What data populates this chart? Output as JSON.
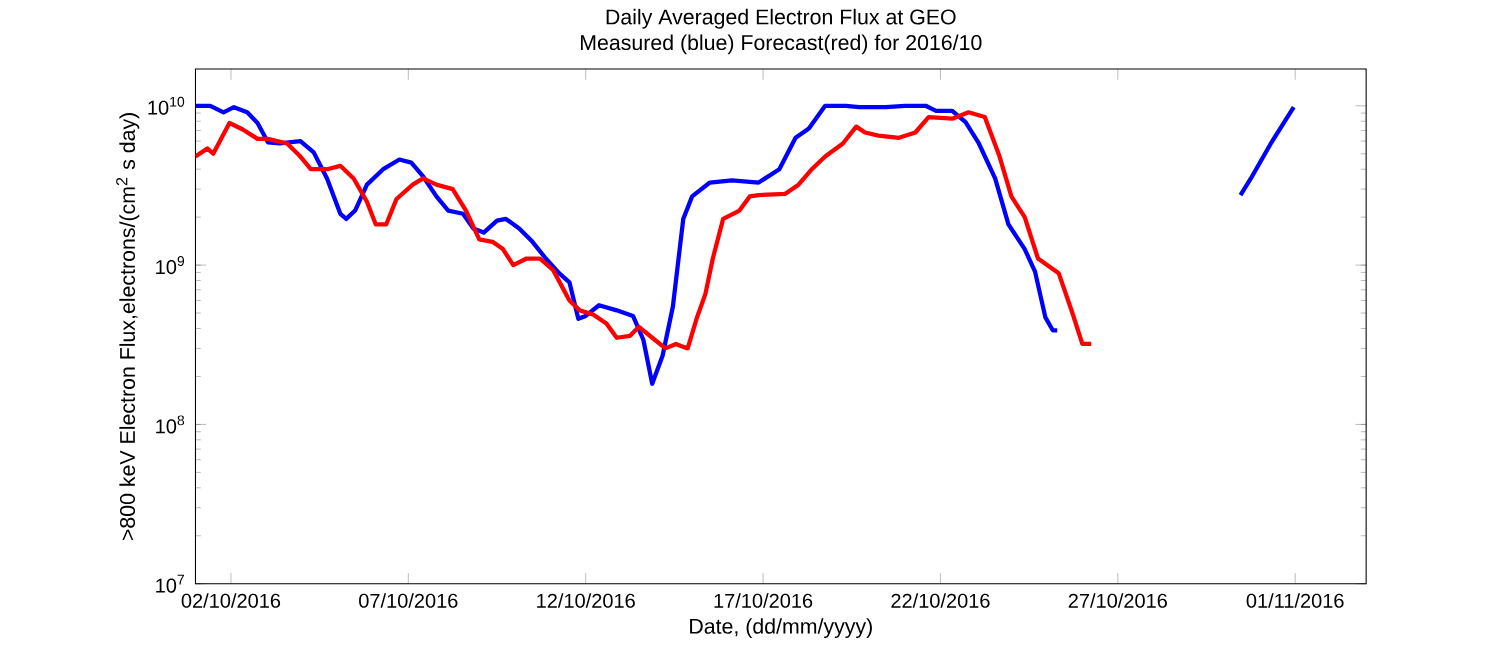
{
  "chart_data": {
    "type": "line",
    "title": "Daily Averaged Electron Flux at GEO",
    "subtitle": "Measured (blue) Forecast(red) for 2016/10",
    "xlabel": "Date, (dd/mm/yyyy)",
    "ylabel": ">800 keV Electron Flux,electrons/(cm$^{2}$ s day)",
    "log": "y",
    "ylim": [
      10000000.0,
      17000000000.0
    ],
    "yticks": [
      {
        "value": 10000000.0,
        "label": "10$^{7}$"
      },
      {
        "value": 100000000.0,
        "label": "10$^{8}$"
      },
      {
        "value": 1000000000.0,
        "label": "10$^{9}$"
      },
      {
        "value": 10000000000.0,
        "label": "10$^{10}$"
      }
    ],
    "xlim": [
      "2016-10-01",
      "2016-11-03"
    ],
    "xticks": [
      {
        "value": "2016-10-02",
        "label": "02/10/2016"
      },
      {
        "value": "2016-10-07",
        "label": "07/10/2016"
      },
      {
        "value": "2016-10-12",
        "label": "12/10/2016"
      },
      {
        "value": "2016-10-17",
        "label": "17/10/2016"
      },
      {
        "value": "2016-10-22",
        "label": "22/10/2016"
      },
      {
        "value": "2016-10-27",
        "label": "27/10/2016"
      },
      {
        "value": "2016-11-01",
        "label": "01/11/2016"
      }
    ],
    "series": [
      {
        "color": "#0000ff",
        "x": [
          "2016-10-01T00:00",
          "2016-10-01T10:00",
          "2016-10-01T19:00",
          "2016-10-02T02:00",
          "2016-10-02T11:00",
          "2016-10-02T18:00",
          "2016-10-03T01:00",
          "2016-10-03T09:00",
          "2016-10-03T23:00",
          "2016-10-04T08:00",
          "2016-10-04T17:00",
          "2016-10-05T02:00",
          "2016-10-05T06:00",
          "2016-10-05T12:00",
          "2016-10-05T20:00",
          "2016-10-06T07:00",
          "2016-10-06T18:00",
          "2016-10-07T02:00",
          "2016-10-07T10:00",
          "2016-10-07T19:00",
          "2016-10-08T03:00",
          "2016-10-08T13:00",
          "2016-10-08T20:00",
          "2016-10-09T03:00",
          "2016-10-09T12:00",
          "2016-10-09T18:00",
          "2016-10-10T03:00",
          "2016-10-10T12:00",
          "2016-10-10T21:00",
          "2016-10-11T06:00",
          "2016-10-11T13:00",
          "2016-10-11T19:00",
          "2016-10-12T00:00",
          "2016-10-12T09:00",
          "2016-10-12T21:00",
          "2016-10-13T08:00",
          "2016-10-13T15:00",
          "2016-10-13T21:00",
          "2016-10-14T04:00",
          "2016-10-14T11:00",
          "2016-10-14T18:00",
          "2016-10-15T00:00",
          "2016-10-15T12:00",
          "2016-10-16T03:00",
          "2016-10-16T21:00",
          "2016-10-17T11:00",
          "2016-10-17T22:00",
          "2016-10-18T07:00",
          "2016-10-18T18:00",
          "2016-10-19T08:00",
          "2016-10-19T17:00",
          "2016-10-20T11:00",
          "2016-10-21T00:00",
          "2016-10-21T14:00",
          "2016-10-21T21:00",
          "2016-10-22T08:00",
          "2016-10-22T17:00",
          "2016-10-23T02:00",
          "2016-10-23T13:00",
          "2016-10-23T22:00",
          "2016-10-24T09:00",
          "2016-10-24T16:00",
          "2016-10-24T23:00",
          "2016-10-25T04:00",
          "2016-10-25T07:00",
          "2016-10-27T00:00",
          "2016-10-30T11:00",
          "2016-10-30T18:00",
          "2016-10-31T08:00",
          "2016-10-31T23:00"
        ],
        "values": [
          10000000000.0,
          10000000000.0,
          9100000000.0,
          9800000000.0,
          9100000000.0,
          7800000000.0,
          5900000000.0,
          5800000000.0,
          6000000000.0,
          5100000000.0,
          3500000000.0,
          2100000000.0,
          1950000000.0,
          2200000000.0,
          3200000000.0,
          4000000000.0,
          4600000000.0,
          4400000000.0,
          3600000000.0,
          2700000000.0,
          2200000000.0,
          2100000000.0,
          1700000000.0,
          1600000000.0,
          1900000000.0,
          1950000000.0,
          1700000000.0,
          1400000000.0,
          1100000000.0,
          890000000.0,
          780000000.0,
          460000000.0,
          480000000.0,
          560000000.0,
          520000000.0,
          480000000.0,
          340000000.0,
          180000000.0,
          270000000.0,
          550000000.0,
          1950000000.0,
          2700000000.0,
          3300000000.0,
          3400000000.0,
          3300000000.0,
          4000000000.0,
          6300000000.0,
          7200000000.0,
          10000000000.0,
          10000000000.0,
          9800000000.0,
          9800000000.0,
          10000000000.0,
          10000000000.0,
          9300000000.0,
          9300000000.0,
          7900000000.0,
          5800000000.0,
          3500000000.0,
          1800000000.0,
          1260000000.0,
          910000000.0,
          470000000.0,
          390000000.0,
          390000000.0,
          null,
          2750000000.0,
          3500000000.0,
          5900000000.0,
          9800000000.0
        ]
      },
      {
        "color": "#ff0000",
        "x": [
          "2016-10-01T00:00",
          "2016-10-01T08:00",
          "2016-10-01T12:00",
          "2016-10-01T23:00",
          "2016-10-02T08:00",
          "2016-10-02T18:00",
          "2016-10-03T01:00",
          "2016-10-03T14:00",
          "2016-10-03T23:00",
          "2016-10-04T06:00",
          "2016-10-04T17:00",
          "2016-10-05T02:00",
          "2016-10-05T11:00",
          "2016-10-05T20:00",
          "2016-10-06T02:00",
          "2016-10-06T09:00",
          "2016-10-06T16:00",
          "2016-10-07T03:00",
          "2016-10-07T10:00",
          "2016-10-07T19:00",
          "2016-10-08T06:00",
          "2016-10-08T15:00",
          "2016-10-09T00:00",
          "2016-10-09T09:00",
          "2016-10-09T16:00",
          "2016-10-09T23:00",
          "2016-10-10T08:00",
          "2016-10-10T17:00",
          "2016-10-11T02:00",
          "2016-10-11T13:00",
          "2016-10-11T20:00",
          "2016-10-12T05:00",
          "2016-10-12T14:00",
          "2016-10-12T21:00",
          "2016-10-13T06:00",
          "2016-10-13T12:00",
          "2016-10-13T21:00",
          "2016-10-14T06:00",
          "2016-10-14T13:00",
          "2016-10-14T21:00",
          "2016-10-15T03:00",
          "2016-10-15T09:00",
          "2016-10-15T14:00",
          "2016-10-15T21:00",
          "2016-10-16T08:00",
          "2016-10-16T15:00",
          "2016-10-16T21:00",
          "2016-10-17T15:00",
          "2016-10-18T00:00",
          "2016-10-18T09:00",
          "2016-10-18T18:00",
          "2016-10-19T06:00",
          "2016-10-19T15:00",
          "2016-10-19T21:00",
          "2016-10-20T06:00",
          "2016-10-20T20:00",
          "2016-10-21T07:00",
          "2016-10-21T16:00",
          "2016-10-22T08:00",
          "2016-10-22T19:00",
          "2016-10-23T06:00",
          "2016-10-23T16:00",
          "2016-10-24T00:00",
          "2016-10-24T09:00",
          "2016-10-24T18:00",
          "2016-10-25T08:00",
          "2016-10-25T17:00",
          "2016-10-26T00:00",
          "2016-10-26T06:00"
        ],
        "values": [
          4800000000.0,
          5400000000.0,
          5000000000.0,
          7800000000.0,
          7100000000.0,
          6200000000.0,
          6200000000.0,
          5800000000.0,
          4800000000.0,
          4000000000.0,
          4000000000.0,
          4200000000.0,
          3500000000.0,
          2500000000.0,
          1800000000.0,
          1800000000.0,
          2600000000.0,
          3200000000.0,
          3500000000.0,
          3200000000.0,
          3000000000.0,
          2200000000.0,
          1450000000.0,
          1400000000.0,
          1260000000.0,
          1000000000.0,
          1100000000.0,
          1100000000.0,
          930000000.0,
          600000000.0,
          520000000.0,
          490000000.0,
          430000000.0,
          350000000.0,
          360000000.0,
          410000000.0,
          350000000.0,
          300000000.0,
          320000000.0,
          300000000.0,
          460000000.0,
          660000000.0,
          1100000000.0,
          1950000000.0,
          2200000000.0,
          2700000000.0,
          2750000000.0,
          2800000000.0,
          3200000000.0,
          4000000000.0,
          4800000000.0,
          5800000000.0,
          7400000000.0,
          6800000000.0,
          6500000000.0,
          6300000000.0,
          6800000000.0,
          8500000000.0,
          8300000000.0,
          9100000000.0,
          8500000000.0,
          4800000000.0,
          2700000000.0,
          2000000000.0,
          1100000000.0,
          890000000.0,
          510000000.0,
          320000000.0,
          320000000.0
        ]
      }
    ]
  }
}
